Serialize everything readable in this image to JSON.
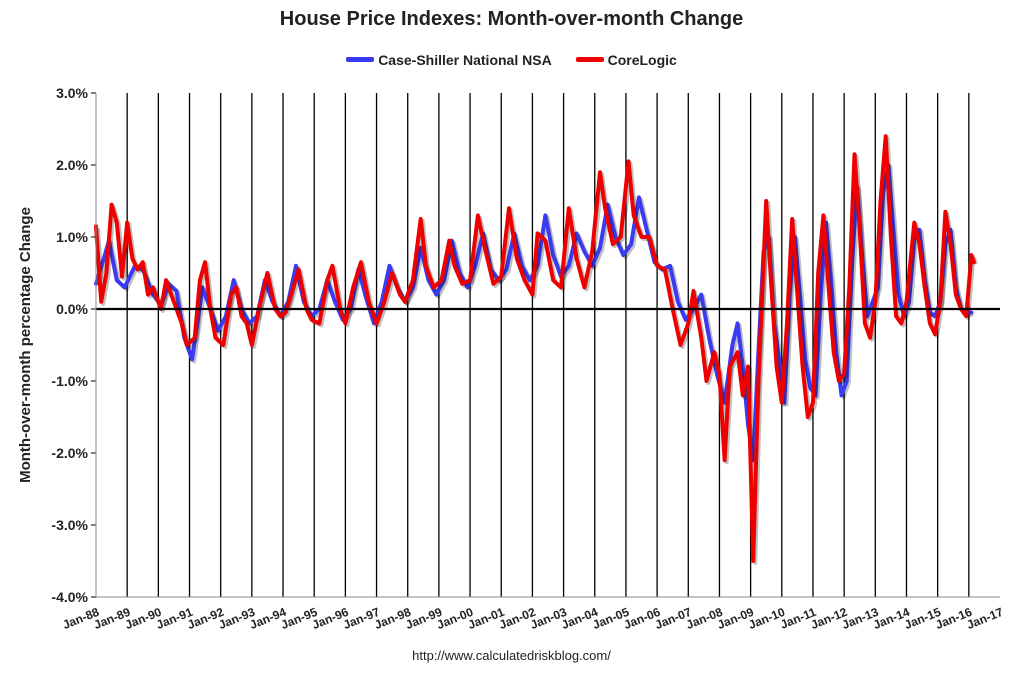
{
  "chart_data": {
    "type": "line",
    "title": "House Price Indexes: Month-over-month Change",
    "ylabel": "Month-over-month percentage Change",
    "xlabel": "",
    "source": "http://www.calculatedriskblog.com/",
    "ylim": [
      -4.0,
      3.0
    ],
    "xlim": [
      "1988-01",
      "2017-01"
    ],
    "y_ticks": [
      {
        "value": 3.0,
        "label": "3.0%"
      },
      {
        "value": 2.0,
        "label": "2.0%"
      },
      {
        "value": 1.0,
        "label": "1.0%"
      },
      {
        "value": 0.0,
        "label": "0.0%"
      },
      {
        "value": -1.0,
        "label": "-1.0%"
      },
      {
        "value": -2.0,
        "label": "-2.0%"
      },
      {
        "value": -3.0,
        "label": "-3.0%"
      },
      {
        "value": -4.0,
        "label": "-4.0%"
      }
    ],
    "x_ticks": [
      "Jan-88",
      "Jan-89",
      "Jan-90",
      "Jan-91",
      "Jan-92",
      "Jan-93",
      "Jan-94",
      "Jan-95",
      "Jan-96",
      "Jan-97",
      "Jan-98",
      "Jan-99",
      "Jan-00",
      "Jan-01",
      "Jan-02",
      "Jan-03",
      "Jan-04",
      "Jan-05",
      "Jan-06",
      "Jan-07",
      "Jan-08",
      "Jan-09",
      "Jan-10",
      "Jan-11",
      "Jan-12",
      "Jan-13",
      "Jan-14",
      "Jan-15",
      "Jan-16",
      "Jan-17"
    ],
    "vertical_gridlines": true,
    "legend_position": "top-center",
    "series": [
      {
        "name": "Case-Shiller National NSA",
        "color": "#3a3af0",
        "data": [
          [
            "1988-01",
            0.35
          ],
          [
            "1988-04",
            0.7
          ],
          [
            "1988-06",
            0.95
          ],
          [
            "1988-09",
            0.4
          ],
          [
            "1988-12",
            0.3
          ],
          [
            "1989-04",
            0.6
          ],
          [
            "1989-07",
            0.55
          ],
          [
            "1989-11",
            0.2
          ],
          [
            "1990-02",
            0.05
          ],
          [
            "1990-05",
            0.35
          ],
          [
            "1990-08",
            0.25
          ],
          [
            "1990-11",
            -0.4
          ],
          [
            "1991-02",
            -0.7
          ],
          [
            "1991-04",
            -0.2
          ],
          [
            "1991-06",
            0.3
          ],
          [
            "1991-09",
            0.0
          ],
          [
            "1991-12",
            -0.3
          ],
          [
            "1992-03",
            -0.1
          ],
          [
            "1992-06",
            0.4
          ],
          [
            "1992-09",
            0.0
          ],
          [
            "1992-12",
            -0.2
          ],
          [
            "1993-03",
            -0.1
          ],
          [
            "1993-06",
            0.4
          ],
          [
            "1993-09",
            0.1
          ],
          [
            "1993-12",
            -0.1
          ],
          [
            "1994-03",
            0.1
          ],
          [
            "1994-06",
            0.6
          ],
          [
            "1994-09",
            0.1
          ],
          [
            "1994-12",
            -0.1
          ],
          [
            "1995-03",
            0.0
          ],
          [
            "1995-06",
            0.4
          ],
          [
            "1995-09",
            0.1
          ],
          [
            "1995-12",
            -0.15
          ],
          [
            "1996-03",
            0.0
          ],
          [
            "1996-06",
            0.55
          ],
          [
            "1996-09",
            0.15
          ],
          [
            "1996-12",
            -0.2
          ],
          [
            "1997-03",
            0.1
          ],
          [
            "1997-06",
            0.6
          ],
          [
            "1997-09",
            0.3
          ],
          [
            "1997-12",
            0.1
          ],
          [
            "1998-03",
            0.3
          ],
          [
            "1998-06",
            0.85
          ],
          [
            "1998-09",
            0.4
          ],
          [
            "1998-12",
            0.2
          ],
          [
            "1999-03",
            0.4
          ],
          [
            "1999-06",
            0.95
          ],
          [
            "1999-09",
            0.5
          ],
          [
            "1999-12",
            0.3
          ],
          [
            "2000-03",
            0.6
          ],
          [
            "2000-06",
            1.05
          ],
          [
            "2000-09",
            0.55
          ],
          [
            "2000-12",
            0.4
          ],
          [
            "2001-03",
            0.55
          ],
          [
            "2001-06",
            1.05
          ],
          [
            "2001-09",
            0.6
          ],
          [
            "2001-12",
            0.4
          ],
          [
            "2002-03",
            0.6
          ],
          [
            "2002-06",
            1.3
          ],
          [
            "2002-09",
            0.75
          ],
          [
            "2002-12",
            0.45
          ],
          [
            "2003-03",
            0.6
          ],
          [
            "2003-06",
            1.05
          ],
          [
            "2003-09",
            0.8
          ],
          [
            "2003-12",
            0.6
          ],
          [
            "2004-03",
            0.85
          ],
          [
            "2004-06",
            1.45
          ],
          [
            "2004-09",
            1.0
          ],
          [
            "2004-12",
            0.75
          ],
          [
            "2005-03",
            0.9
          ],
          [
            "2005-06",
            1.55
          ],
          [
            "2005-09",
            1.1
          ],
          [
            "2005-12",
            0.65
          ],
          [
            "2006-03",
            0.55
          ],
          [
            "2006-06",
            0.6
          ],
          [
            "2006-09",
            0.1
          ],
          [
            "2006-12",
            -0.15
          ],
          [
            "2007-03",
            0.0
          ],
          [
            "2007-06",
            0.2
          ],
          [
            "2007-09",
            -0.4
          ],
          [
            "2007-12",
            -0.9
          ],
          [
            "2008-03",
            -1.3
          ],
          [
            "2008-06",
            -0.5
          ],
          [
            "2008-08",
            -0.2
          ],
          [
            "2008-10",
            -0.8
          ],
          [
            "2008-12",
            -1.6
          ],
          [
            "2009-02",
            -2.1
          ],
          [
            "2009-04",
            -0.6
          ],
          [
            "2009-06",
            0.8
          ],
          [
            "2009-08",
            1.0
          ],
          [
            "2009-10",
            -0.2
          ],
          [
            "2009-12",
            -0.7
          ],
          [
            "2010-02",
            -1.3
          ],
          [
            "2010-04",
            0.2
          ],
          [
            "2010-06",
            1.0
          ],
          [
            "2010-08",
            0.2
          ],
          [
            "2010-10",
            -0.7
          ],
          [
            "2010-12",
            -1.1
          ],
          [
            "2011-02",
            -1.2
          ],
          [
            "2011-04",
            0.2
          ],
          [
            "2011-06",
            1.2
          ],
          [
            "2011-08",
            0.4
          ],
          [
            "2011-10",
            -0.6
          ],
          [
            "2011-12",
            -1.2
          ],
          [
            "2012-02",
            -1.0
          ],
          [
            "2012-04",
            0.6
          ],
          [
            "2012-06",
            1.7
          ],
          [
            "2012-08",
            0.7
          ],
          [
            "2012-10",
            -0.1
          ],
          [
            "2012-12",
            0.1
          ],
          [
            "2013-02",
            0.3
          ],
          [
            "2013-04",
            1.6
          ],
          [
            "2013-06",
            2.0
          ],
          [
            "2013-08",
            1.1
          ],
          [
            "2013-10",
            0.2
          ],
          [
            "2013-12",
            -0.1
          ],
          [
            "2014-02",
            0.1
          ],
          [
            "2014-04",
            1.0
          ],
          [
            "2014-06",
            1.1
          ],
          [
            "2014-08",
            0.4
          ],
          [
            "2014-10",
            -0.05
          ],
          [
            "2014-12",
            -0.1
          ],
          [
            "2015-02",
            0.1
          ],
          [
            "2015-04",
            0.9
          ],
          [
            "2015-06",
            1.1
          ],
          [
            "2015-08",
            0.3
          ],
          [
            "2015-10",
            0.0
          ],
          [
            "2015-12",
            -0.05
          ],
          [
            "2016-02",
            -0.05
          ]
        ]
      },
      {
        "name": "CoreLogic",
        "color": "#ee0000",
        "data": [
          [
            "1988-01",
            1.15
          ],
          [
            "1988-03",
            0.1
          ],
          [
            "1988-05",
            0.5
          ],
          [
            "1988-07",
            1.45
          ],
          [
            "1988-09",
            1.2
          ],
          [
            "1988-11",
            0.45
          ],
          [
            "1989-01",
            1.2
          ],
          [
            "1989-03",
            0.7
          ],
          [
            "1989-05",
            0.55
          ],
          [
            "1989-07",
            0.65
          ],
          [
            "1989-09",
            0.2
          ],
          [
            "1989-11",
            0.3
          ],
          [
            "1990-02",
            0.0
          ],
          [
            "1990-04",
            0.4
          ],
          [
            "1990-07",
            0.1
          ],
          [
            "1990-10",
            -0.2
          ],
          [
            "1990-12",
            -0.5
          ],
          [
            "1991-03",
            -0.4
          ],
          [
            "1991-05",
            0.4
          ],
          [
            "1991-07",
            0.65
          ],
          [
            "1991-09",
            0.0
          ],
          [
            "1991-11",
            -0.4
          ],
          [
            "1992-02",
            -0.5
          ],
          [
            "1992-05",
            0.2
          ],
          [
            "1992-07",
            0.3
          ],
          [
            "1992-09",
            -0.1
          ],
          [
            "1992-11",
            -0.2
          ],
          [
            "1993-01",
            -0.5
          ],
          [
            "1993-04",
            0.05
          ],
          [
            "1993-07",
            0.5
          ],
          [
            "1993-10",
            0.0
          ],
          [
            "1993-12",
            -0.1
          ],
          [
            "1994-02",
            -0.05
          ],
          [
            "1994-05",
            0.3
          ],
          [
            "1994-07",
            0.55
          ],
          [
            "1994-10",
            0.0
          ],
          [
            "1994-12",
            -0.15
          ],
          [
            "1995-03",
            -0.2
          ],
          [
            "1995-06",
            0.4
          ],
          [
            "1995-08",
            0.6
          ],
          [
            "1995-11",
            0.0
          ],
          [
            "1996-01",
            -0.2
          ],
          [
            "1996-04",
            0.3
          ],
          [
            "1996-07",
            0.65
          ],
          [
            "1996-10",
            0.1
          ],
          [
            "1997-01",
            -0.2
          ],
          [
            "1997-04",
            0.1
          ],
          [
            "1997-07",
            0.5
          ],
          [
            "1997-10",
            0.2
          ],
          [
            "1997-12",
            0.1
          ],
          [
            "1998-03",
            0.4
          ],
          [
            "1998-06",
            1.25
          ],
          [
            "1998-08",
            0.6
          ],
          [
            "1998-11",
            0.3
          ],
          [
            "1999-02",
            0.4
          ],
          [
            "1999-05",
            0.95
          ],
          [
            "1999-07",
            0.6
          ],
          [
            "1999-10",
            0.35
          ],
          [
            "2000-01",
            0.4
          ],
          [
            "2000-04",
            1.3
          ],
          [
            "2000-07",
            0.8
          ],
          [
            "2000-10",
            0.35
          ],
          [
            "2001-01",
            0.45
          ],
          [
            "2001-04",
            1.4
          ],
          [
            "2001-07",
            0.7
          ],
          [
            "2001-10",
            0.4
          ],
          [
            "2002-01",
            0.2
          ],
          [
            "2002-03",
            1.05
          ],
          [
            "2002-06",
            0.95
          ],
          [
            "2002-09",
            0.4
          ],
          [
            "2002-12",
            0.3
          ],
          [
            "2003-03",
            1.4
          ],
          [
            "2003-06",
            0.7
          ],
          [
            "2003-09",
            0.3
          ],
          [
            "2003-12",
            0.8
          ],
          [
            "2004-03",
            1.9
          ],
          [
            "2004-05",
            1.4
          ],
          [
            "2004-08",
            0.9
          ],
          [
            "2004-11",
            1.0
          ],
          [
            "2005-02",
            2.05
          ],
          [
            "2005-04",
            1.3
          ],
          [
            "2005-07",
            1.0
          ],
          [
            "2005-10",
            1.0
          ],
          [
            "2006-01",
            0.6
          ],
          [
            "2006-04",
            0.55
          ],
          [
            "2006-07",
            0.0
          ],
          [
            "2006-10",
            -0.5
          ],
          [
            "2007-01",
            -0.2
          ],
          [
            "2007-03",
            0.25
          ],
          [
            "2007-06",
            -0.4
          ],
          [
            "2007-08",
            -1.0
          ],
          [
            "2007-11",
            -0.6
          ],
          [
            "2008-01",
            -0.9
          ],
          [
            "2008-03",
            -2.1
          ],
          [
            "2008-05",
            -0.8
          ],
          [
            "2008-08",
            -0.6
          ],
          [
            "2008-10",
            -1.2
          ],
          [
            "2008-12",
            -0.8
          ],
          [
            "2009-02",
            -3.5
          ],
          [
            "2009-04",
            -1.0
          ],
          [
            "2009-07",
            1.5
          ],
          [
            "2009-09",
            0.3
          ],
          [
            "2009-11",
            -0.8
          ],
          [
            "2010-01",
            -1.3
          ],
          [
            "2010-03",
            -0.2
          ],
          [
            "2010-05",
            1.25
          ],
          [
            "2010-07",
            0.2
          ],
          [
            "2010-09",
            -0.8
          ],
          [
            "2010-11",
            -1.5
          ],
          [
            "2011-01",
            -1.3
          ],
          [
            "2011-03",
            0.5
          ],
          [
            "2011-05",
            1.3
          ],
          [
            "2011-07",
            0.3
          ],
          [
            "2011-09",
            -0.6
          ],
          [
            "2011-11",
            -1.0
          ],
          [
            "2012-01",
            -0.9
          ],
          [
            "2012-03",
            0.3
          ],
          [
            "2012-05",
            2.15
          ],
          [
            "2012-07",
            1.1
          ],
          [
            "2012-09",
            -0.2
          ],
          [
            "2012-11",
            -0.4
          ],
          [
            "2013-01",
            0.1
          ],
          [
            "2013-03",
            1.5
          ],
          [
            "2013-05",
            2.4
          ],
          [
            "2013-07",
            1.0
          ],
          [
            "2013-09",
            -0.1
          ],
          [
            "2013-11",
            -0.2
          ],
          [
            "2014-01",
            0.1
          ],
          [
            "2014-04",
            1.2
          ],
          [
            "2014-06",
            0.9
          ],
          [
            "2014-08",
            0.3
          ],
          [
            "2014-10",
            -0.2
          ],
          [
            "2014-12",
            -0.35
          ],
          [
            "2015-02",
            0.1
          ],
          [
            "2015-04",
            1.35
          ],
          [
            "2015-06",
            0.9
          ],
          [
            "2015-08",
            0.2
          ],
          [
            "2015-10",
            0.0
          ],
          [
            "2015-12",
            -0.1
          ],
          [
            "2016-02",
            0.75
          ],
          [
            "2016-03",
            0.65
          ]
        ]
      }
    ]
  }
}
